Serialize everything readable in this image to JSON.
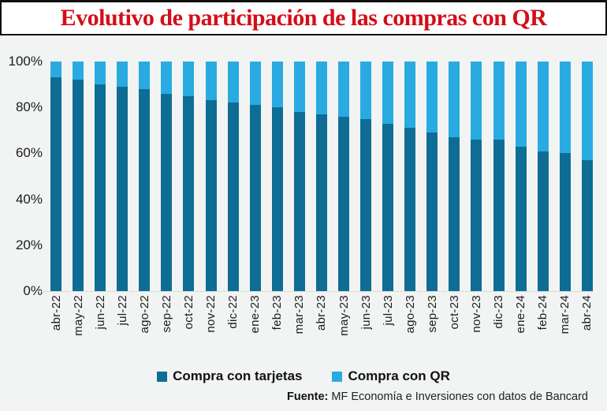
{
  "title": "Evolutivo de participación de las compras con QR",
  "source": {
    "label": "Fuente:",
    "text": "MF Economía e Inversiones con datos de Bancard"
  },
  "colors": {
    "cards": "#0e6d94",
    "qr": "#29abe2",
    "title_red": "#d40d18",
    "panel_bg": "#f1f4f2"
  },
  "legend": [
    {
      "name": "Compra con tarjetas",
      "color": "#0e6d94"
    },
    {
      "name": "Compra con QR",
      "color": "#29abe2"
    }
  ],
  "chart_data": {
    "type": "bar",
    "stacked": true,
    "percent_stacked": true,
    "title": "Evolutivo de participación de las compras con QR",
    "xlabel": "",
    "ylabel": "",
    "ylim": [
      0,
      100
    ],
    "yticks": [
      "0%",
      "20%",
      "40%",
      "60%",
      "80%",
      "100%"
    ],
    "grid": false,
    "legend_position": "bottom",
    "categories": [
      "abr-22",
      "may-22",
      "jun-22",
      "jul-22",
      "ago-22",
      "sep-22",
      "oct-22",
      "nov-22",
      "dic-22",
      "ene-23",
      "feb-23",
      "mar-23",
      "abr-23",
      "may-23",
      "jun-23",
      "jul-23",
      "ago-23",
      "sep-23",
      "oct-23",
      "nov-23",
      "dic-23",
      "ene-24",
      "feb-24",
      "mar-24",
      "abr-24"
    ],
    "series": [
      {
        "name": "Compra con tarjetas",
        "color": "#0e6d94",
        "values": [
          93,
          92,
          90,
          89,
          88,
          86,
          85,
          83,
          82,
          81,
          80,
          78,
          77,
          76,
          75,
          73,
          71,
          69,
          67,
          66,
          66,
          63,
          61,
          60,
          57
        ]
      },
      {
        "name": "Compra con QR",
        "color": "#29abe2",
        "values": [
          7,
          8,
          10,
          11,
          12,
          14,
          15,
          17,
          18,
          19,
          20,
          22,
          23,
          24,
          25,
          27,
          29,
          31,
          33,
          34,
          34,
          37,
          39,
          40,
          43
        ]
      }
    ]
  }
}
